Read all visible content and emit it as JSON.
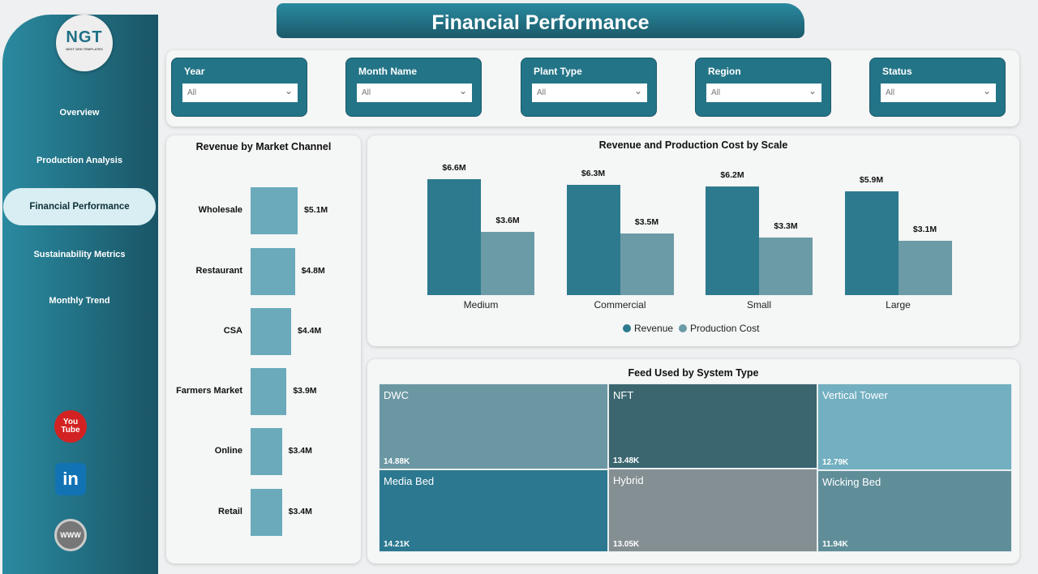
{
  "title": "Financial Performance",
  "logo": {
    "text": "NGT",
    "subtext": "NEXT GEN TEMPLATES"
  },
  "nav": [
    {
      "label": "Overview"
    },
    {
      "label": "Production Analysis"
    },
    {
      "label": "Financial Performance",
      "active": true
    },
    {
      "label": "Sustainability Metrics"
    },
    {
      "label": "Monthly Trend"
    }
  ],
  "social": [
    {
      "icon": "youtube-icon",
      "label": "You Tube"
    },
    {
      "icon": "linkedin-icon",
      "label": "in"
    },
    {
      "icon": "globe-icon",
      "label": "WWW"
    }
  ],
  "filters": [
    {
      "label": "Year",
      "value": "All"
    },
    {
      "label": "Month Name",
      "value": "All"
    },
    {
      "label": "Plant Type",
      "value": "All"
    },
    {
      "label": "Region",
      "value": "All"
    },
    {
      "label": "Status",
      "value": "All"
    }
  ],
  "colors": {
    "accent": "#237487",
    "revenue": "#2d7a8e",
    "cost": "#6b9ba6",
    "channel_bar": "#6aaabb"
  },
  "chart_data": [
    {
      "type": "bar",
      "orientation": "horizontal",
      "title": "Revenue by Market Channel",
      "categories": [
        "Wholesale",
        "Restaurant",
        "CSA",
        "Farmers Market",
        "Online",
        "Retail"
      ],
      "values": [
        5.1,
        4.8,
        4.4,
        3.9,
        3.4,
        3.4
      ],
      "labels": [
        "$5.1M",
        "$4.8M",
        "$4.4M",
        "$3.9M",
        "$3.4M",
        "$3.4M"
      ]
    },
    {
      "type": "bar",
      "title": "Revenue and Production Cost by Scale",
      "categories": [
        "Medium",
        "Commercial",
        "Small",
        "Large"
      ],
      "series": [
        {
          "name": "Revenue",
          "values": [
            6.6,
            6.3,
            6.2,
            5.9
          ],
          "labels": [
            "$6.6M",
            "$6.3M",
            "$6.2M",
            "$5.9M"
          ]
        },
        {
          "name": "Production Cost",
          "values": [
            3.6,
            3.5,
            3.3,
            3.1
          ],
          "labels": [
            "$3.6M",
            "$3.5M",
            "$3.3M",
            "$3.1M"
          ]
        }
      ],
      "legend": "bottom"
    },
    {
      "type": "treemap",
      "title": "Feed Used by System Type",
      "items": [
        {
          "name": "DWC",
          "label": "14.88K",
          "color": "#6b97a3"
        },
        {
          "name": "Media Bed",
          "label": "14.21K",
          "color": "#2b7890"
        },
        {
          "name": "NFT",
          "label": "13.48K",
          "color": "#3b6670"
        },
        {
          "name": "Hybrid",
          "label": "13.05K",
          "color": "#848f93"
        },
        {
          "name": "Vertical Tower",
          "label": "12.79K",
          "color": "#72afc0"
        },
        {
          "name": "Wicking Bed",
          "label": "11.94K",
          "color": "#5f8e99"
        }
      ]
    }
  ]
}
